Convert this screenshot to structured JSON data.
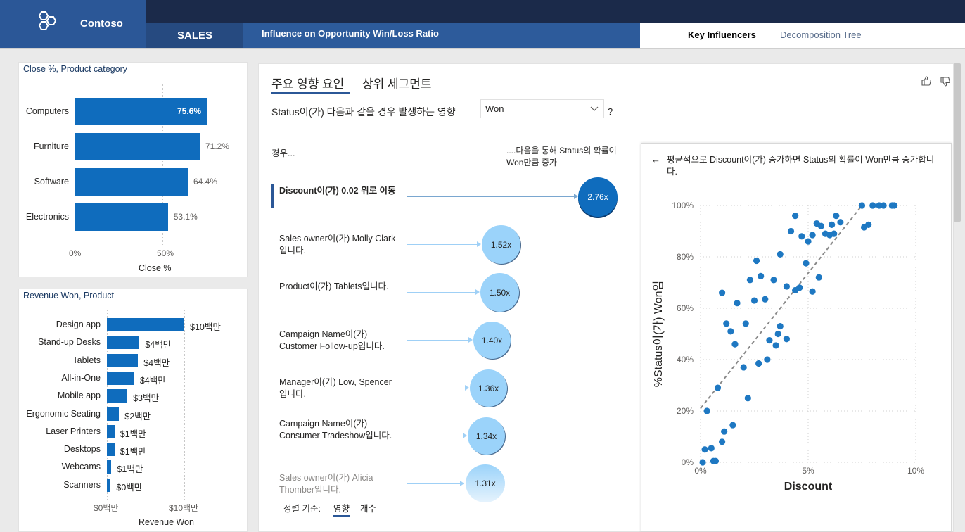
{
  "header": {
    "brand": "Contoso",
    "nav_sales": "SALES",
    "nav_title": "Influence on Opportunity Win/Loss Ratio",
    "tab_key_influencers": "Key Influencers",
    "tab_decomposition_tree": "Decomposition Tree"
  },
  "close_chart": {
    "title": "Close %, Product category",
    "ticks": [
      "0%",
      "50%"
    ],
    "axis_title": "Close %",
    "chart_data": {
      "type": "bar",
      "categories": [
        "Computers",
        "Furniture",
        "Software",
        "Electronics"
      ],
      "values": [
        75.6,
        71.2,
        64.4,
        53.1
      ],
      "labels": [
        "75.6%",
        "71.2%",
        "64.4%",
        "53.1%"
      ],
      "xlim": [
        0,
        100
      ]
    }
  },
  "revenue_chart": {
    "title": "Revenue Won, Product",
    "ticks": [
      "$0백만",
      "$10백만"
    ],
    "axis_title": "Revenue Won",
    "chart_data": {
      "type": "bar",
      "categories": [
        "Design app",
        "Stand-up Desks",
        "Tablets",
        "All-in-One",
        "Mobile app",
        "Ergonomic Seating",
        "Laser Printers",
        "Desktops",
        "Webcams",
        "Scanners"
      ],
      "values": [
        10.2,
        4.3,
        4.1,
        3.6,
        2.7,
        1.6,
        1.0,
        1.0,
        0.6,
        0.5
      ],
      "labels": [
        "$10백만",
        "$4백만",
        "$4백만",
        "$4백만",
        "$3백만",
        "$2백만",
        "$1백만",
        "$1백만",
        "$1백만",
        "$0백만"
      ],
      "xlim": [
        0,
        10.2
      ]
    }
  },
  "influencers": {
    "tab_key": "주요 영향 요인",
    "tab_segments": "상위 세그먼트",
    "question": "Status이(가) 다음과 같을 경우 발생하는 영향",
    "selected_value": "Won",
    "help": "?",
    "col_when": "경우...",
    "col_then": "....다음을 통해 Status의 확률이 Won만큼 증가",
    "items": [
      {
        "label": "Discount이(가) 0.02 위로 이동",
        "value": "2.76x"
      },
      {
        "label": "Sales owner이(가) Molly Clark입니다.",
        "value": "1.52x"
      },
      {
        "label": "Product이(가) Tablets입니다.",
        "value": "1.50x"
      },
      {
        "label": "Campaign Name이(가) Customer Follow-up입니다.",
        "value": "1.40x"
      },
      {
        "label": "Manager이(가) Low, Spencer입니다.",
        "value": "1.36x"
      },
      {
        "label": "Campaign Name이(가) Consumer Tradeshow입니다.",
        "value": "1.34x"
      },
      {
        "label": "Sales owner이(가) Alicia Thomber입니다.",
        "value": "1.31x"
      }
    ],
    "sort_by": "정렬 기준:",
    "sort_impact": "영향",
    "sort_count": "개수"
  },
  "scatter": {
    "description": "평균적으로 Discount이(가) 증가하면 Status의 확률이 Won만큼 증가합니다.",
    "ylabel": "%Status이(가) Won임",
    "xlabel": "Discount",
    "xticks": [
      "0%",
      "5%",
      "10%"
    ],
    "yticks": [
      "0%",
      "20%",
      "40%",
      "60%",
      "80%",
      "100%"
    ],
    "chart_data": {
      "type": "scatter",
      "xlim": [
        0,
        10
      ],
      "ylim": [
        0,
        100
      ],
      "points": [
        [
          0.1,
          0
        ],
        [
          0.2,
          5
        ],
        [
          0.5,
          5.5
        ],
        [
          0.6,
          0.5
        ],
        [
          0.7,
          0.5
        ],
        [
          0.3,
          20
        ],
        [
          0.8,
          29
        ],
        [
          1.0,
          8
        ],
        [
          1.1,
          12
        ],
        [
          1.5,
          14.5
        ],
        [
          1.0,
          66
        ],
        [
          1.2,
          54
        ],
        [
          1.4,
          51
        ],
        [
          1.6,
          46
        ],
        [
          1.7,
          62
        ],
        [
          2.0,
          37
        ],
        [
          2.1,
          54
        ],
        [
          2.2,
          25
        ],
        [
          2.3,
          71
        ],
        [
          2.5,
          63
        ],
        [
          2.6,
          78.5
        ],
        [
          2.7,
          38.5
        ],
        [
          2.8,
          72.5
        ],
        [
          3.0,
          63.5
        ],
        [
          3.1,
          40
        ],
        [
          3.2,
          47.5
        ],
        [
          3.4,
          71
        ],
        [
          3.5,
          45.5
        ],
        [
          3.6,
          50
        ],
        [
          3.7,
          53
        ],
        [
          3.7,
          81
        ],
        [
          4.0,
          48
        ],
        [
          4.0,
          68.5
        ],
        [
          4.2,
          90
        ],
        [
          4.4,
          96
        ],
        [
          4.4,
          67
        ],
        [
          4.6,
          68
        ],
        [
          4.7,
          88
        ],
        [
          5.0,
          86
        ],
        [
          5.2,
          88.5
        ],
        [
          4.9,
          77.5
        ],
        [
          5.2,
          66.5
        ],
        [
          5.5,
          72
        ],
        [
          5.4,
          93
        ],
        [
          5.6,
          92
        ],
        [
          5.8,
          89
        ],
        [
          6.0,
          88.5
        ],
        [
          6.1,
          92.5
        ],
        [
          6.2,
          89
        ],
        [
          6.3,
          96
        ],
        [
          6.5,
          93.5
        ],
        [
          7.5,
          100
        ],
        [
          7.6,
          91.5
        ],
        [
          7.8,
          92.5
        ],
        [
          8.0,
          100
        ],
        [
          8.3,
          100
        ],
        [
          8.5,
          100
        ],
        [
          8.9,
          100
        ],
        [
          9.0,
          100
        ]
      ],
      "trendline": [
        [
          0.0,
          21
        ],
        [
          7.5,
          100
        ]
      ]
    }
  }
}
